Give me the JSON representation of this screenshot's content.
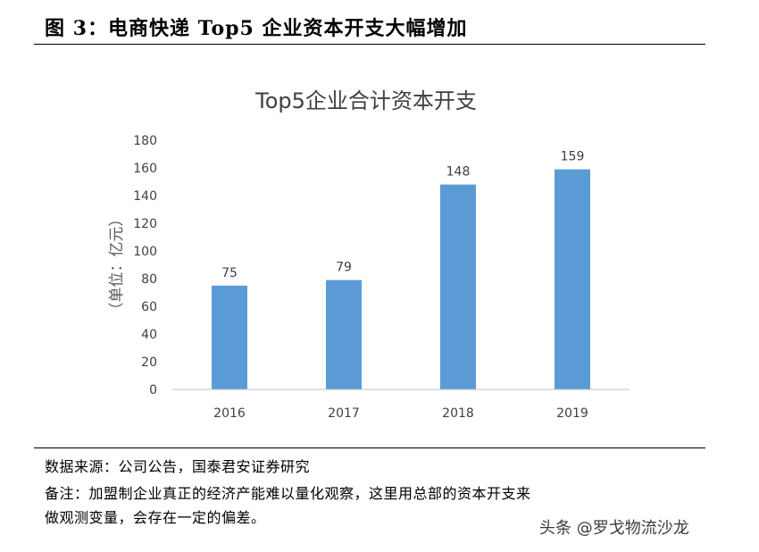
{
  "figure_title": "图 3：电商快递 Top5 企业资本开支大幅增加",
  "source_note": "数据来源：公司公告，国泰君安证券研究",
  "remark_line1": "备注：加盟制企业真正的经济产能难以量化观察，这里用总部的资本开支来",
  "remark_line2": "做观测变量，会存在一定的偏差。",
  "watermark": "头条 @罗戈物流沙龙",
  "colors": {
    "bar": "#5b9bd5",
    "axis": "#bfbfbf",
    "text": "#404040"
  },
  "chart_data": {
    "type": "bar",
    "title": "Top5企业合计资本开支",
    "ylabel": "（单位：亿元）",
    "xlabel": "",
    "categories": [
      "2016",
      "2017",
      "2018",
      "2019"
    ],
    "values": [
      75,
      79,
      148,
      159
    ],
    "ylim": [
      0,
      180
    ],
    "yticks": [
      0,
      20,
      40,
      60,
      80,
      100,
      120,
      140,
      160,
      180
    ],
    "data_labels": true,
    "grid": false,
    "legend": "none"
  }
}
